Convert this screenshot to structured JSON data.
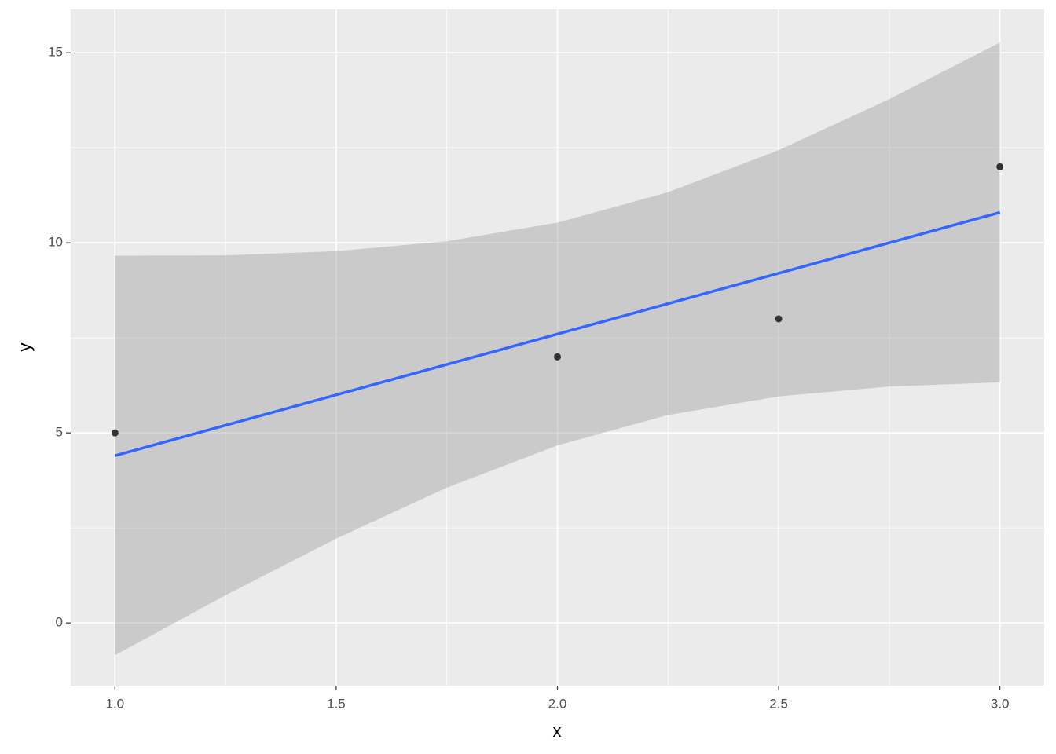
{
  "chart_data": {
    "type": "smooth",
    "x_label": "x",
    "y_label": "y",
    "points": {
      "x": [
        1,
        2,
        2.5,
        3
      ],
      "values": [
        5,
        7,
        8,
        12
      ],
      "color": "#333333"
    },
    "fit": {
      "x": [
        1,
        3
      ],
      "values": [
        4.4,
        10.8
      ],
      "color": "#3366ff"
    },
    "band": {
      "x": [
        1,
        1.25,
        1.5,
        1.75,
        2,
        2.25,
        2.5,
        2.75,
        3
      ],
      "lower": [
        -0.85,
        0.73,
        2.22,
        3.56,
        4.67,
        5.47,
        5.96,
        6.22,
        6.33
      ],
      "upper": [
        9.66,
        9.67,
        9.78,
        10.04,
        10.53,
        11.33,
        12.44,
        13.78,
        15.27
      ],
      "color": "#999999"
    },
    "xlim": [
      0.9,
      3.1
    ],
    "xticks": [
      {
        "value": 1,
        "label": "1.0"
      },
      1.5,
      {
        "value": 2,
        "label": "2.0"
      },
      2.5,
      {
        "value": 3,
        "label": "3.0"
      }
    ],
    "x_minor_breaks": [
      1.25,
      1.75,
      2.25,
      2.75
    ],
    "ylim": [
      -1.65,
      16.14
    ],
    "yticks": [
      0,
      5,
      10,
      15
    ],
    "y_minor_breaks": [
      2.5,
      7.5,
      12.5
    ],
    "grid": true
  }
}
